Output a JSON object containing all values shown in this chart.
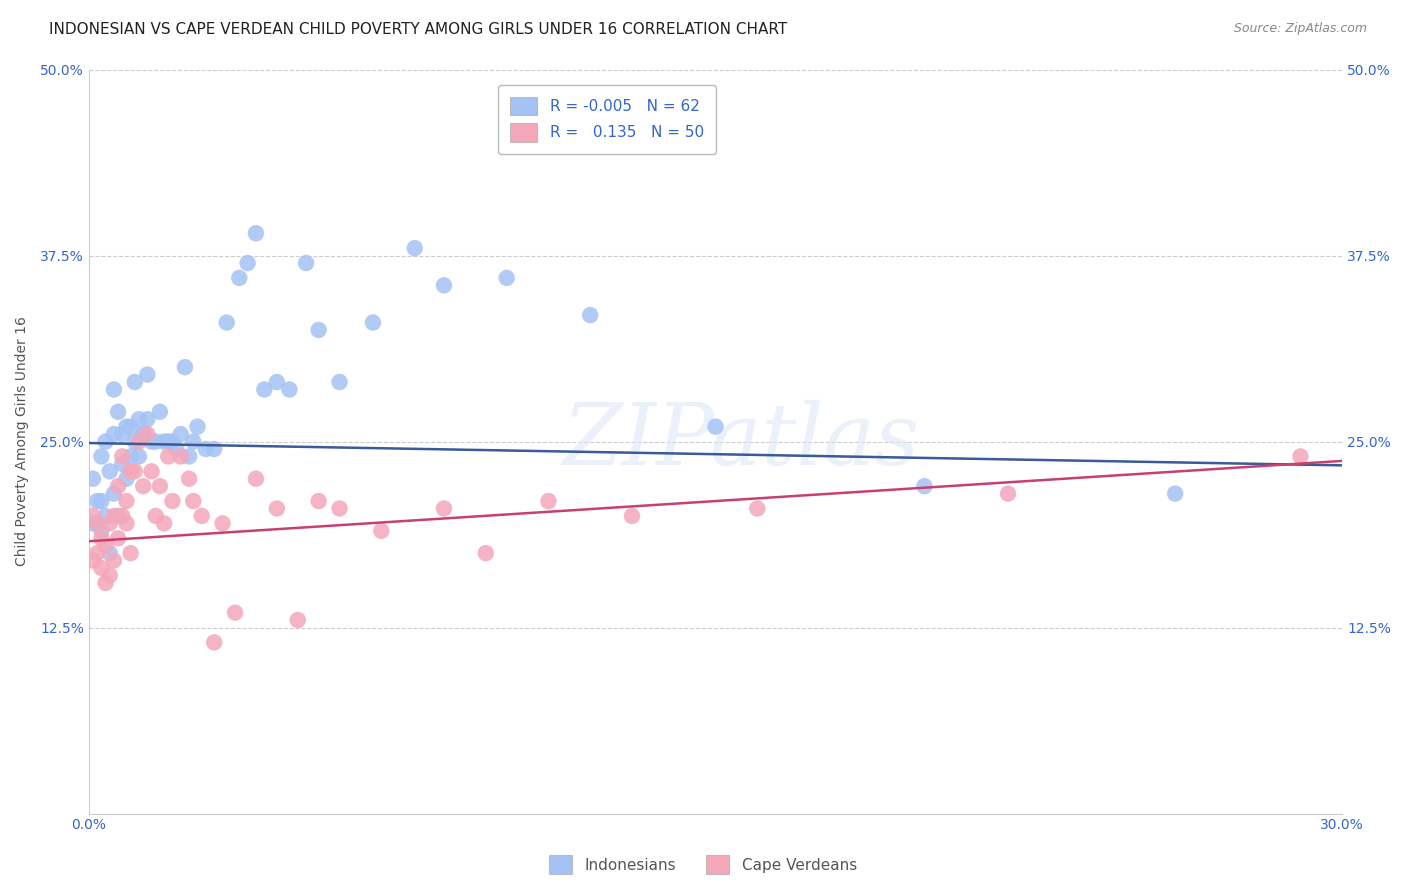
{
  "title": "INDONESIAN VS CAPE VERDEAN CHILD POVERTY AMONG GIRLS UNDER 16 CORRELATION CHART",
  "source": "Source: ZipAtlas.com",
  "ylabel": "Child Poverty Among Girls Under 16",
  "xlim": [
    0.0,
    0.3
  ],
  "ylim": [
    0.0,
    0.5
  ],
  "xticks": [
    0.0,
    0.05,
    0.1,
    0.15,
    0.2,
    0.25,
    0.3
  ],
  "xticklabels": [
    "0.0%",
    "",
    "",
    "",
    "",
    "",
    "30.0%"
  ],
  "yticks": [
    0.0,
    0.125,
    0.25,
    0.375,
    0.5
  ],
  "yticklabels": [
    "",
    "12.5%",
    "25.0%",
    "37.5%",
    "50.0%"
  ],
  "legend_labels": [
    "Indonesians",
    "Cape Verdeans"
  ],
  "legend_r_values": [
    "-0.005",
    "0.135"
  ],
  "legend_n_values": [
    "62",
    "50"
  ],
  "blue_color": "#a4c2f4",
  "pink_color": "#f4a7b9",
  "blue_line_color": "#3c5a9a",
  "pink_line_color": "#c94070",
  "watermark": "ZIPatlas",
  "indonesian_x": [
    0.001,
    0.001,
    0.002,
    0.002,
    0.003,
    0.003,
    0.003,
    0.004,
    0.004,
    0.005,
    0.005,
    0.006,
    0.006,
    0.006,
    0.007,
    0.007,
    0.008,
    0.008,
    0.009,
    0.009,
    0.01,
    0.01,
    0.011,
    0.011,
    0.012,
    0.012,
    0.013,
    0.013,
    0.014,
    0.014,
    0.015,
    0.016,
    0.017,
    0.018,
    0.019,
    0.02,
    0.021,
    0.022,
    0.023,
    0.024,
    0.025,
    0.026,
    0.028,
    0.03,
    0.033,
    0.036,
    0.038,
    0.04,
    0.042,
    0.045,
    0.048,
    0.052,
    0.055,
    0.06,
    0.068,
    0.078,
    0.085,
    0.1,
    0.12,
    0.15,
    0.2,
    0.26
  ],
  "indonesian_y": [
    0.195,
    0.225,
    0.195,
    0.21,
    0.19,
    0.21,
    0.24,
    0.2,
    0.25,
    0.175,
    0.23,
    0.215,
    0.255,
    0.285,
    0.2,
    0.27,
    0.235,
    0.255,
    0.225,
    0.26,
    0.24,
    0.26,
    0.25,
    0.29,
    0.24,
    0.265,
    0.255,
    0.255,
    0.265,
    0.295,
    0.25,
    0.25,
    0.27,
    0.25,
    0.25,
    0.25,
    0.245,
    0.255,
    0.3,
    0.24,
    0.25,
    0.26,
    0.245,
    0.245,
    0.33,
    0.36,
    0.37,
    0.39,
    0.285,
    0.29,
    0.285,
    0.37,
    0.325,
    0.29,
    0.33,
    0.38,
    0.355,
    0.36,
    0.335,
    0.26,
    0.22,
    0.215
  ],
  "capeverdean_x": [
    0.001,
    0.001,
    0.002,
    0.002,
    0.003,
    0.003,
    0.004,
    0.004,
    0.005,
    0.005,
    0.006,
    0.006,
    0.007,
    0.007,
    0.008,
    0.008,
    0.009,
    0.009,
    0.01,
    0.01,
    0.011,
    0.012,
    0.013,
    0.014,
    0.015,
    0.016,
    0.017,
    0.018,
    0.019,
    0.02,
    0.022,
    0.024,
    0.025,
    0.027,
    0.03,
    0.032,
    0.035,
    0.04,
    0.045,
    0.05,
    0.055,
    0.06,
    0.07,
    0.085,
    0.095,
    0.11,
    0.13,
    0.16,
    0.22,
    0.29
  ],
  "capeverdean_y": [
    0.17,
    0.2,
    0.175,
    0.195,
    0.165,
    0.185,
    0.155,
    0.18,
    0.16,
    0.195,
    0.17,
    0.2,
    0.185,
    0.22,
    0.2,
    0.24,
    0.195,
    0.21,
    0.175,
    0.23,
    0.23,
    0.25,
    0.22,
    0.255,
    0.23,
    0.2,
    0.22,
    0.195,
    0.24,
    0.21,
    0.24,
    0.225,
    0.21,
    0.2,
    0.115,
    0.195,
    0.135,
    0.225,
    0.205,
    0.13,
    0.21,
    0.205,
    0.19,
    0.205,
    0.175,
    0.21,
    0.2,
    0.205,
    0.215,
    0.24
  ],
  "background_color": "#ffffff",
  "grid_color": "#cccccc",
  "title_fontsize": 11,
  "axis_label_fontsize": 10,
  "tick_fontsize": 10,
  "legend_fontsize": 11
}
